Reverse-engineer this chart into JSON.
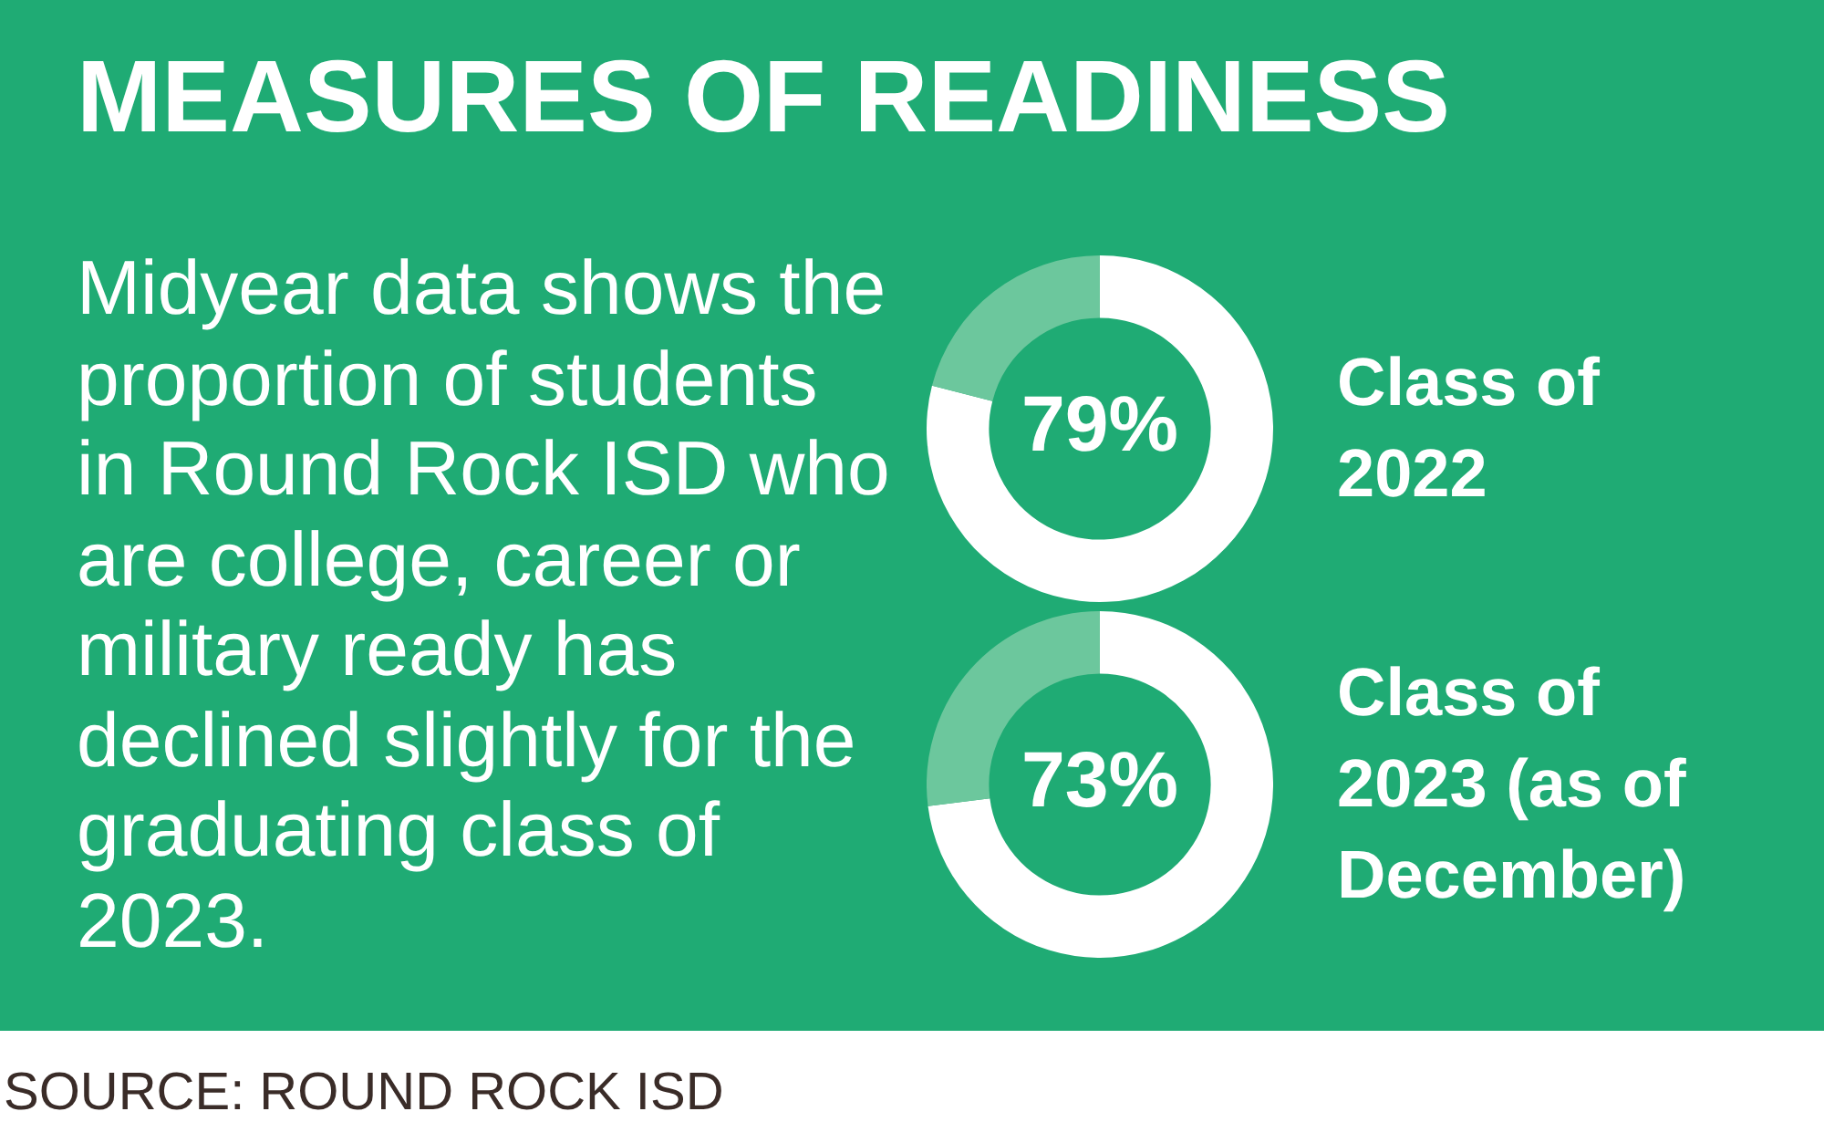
{
  "chart_data": [
    {
      "type": "other",
      "title": "MEASURES OF READINESS",
      "subtitle": "Midyear data shows the proportion of students in Round Rock ISD who are college, career or military ready has declined slightly for the graduating class of 2023.",
      "annotations": [
        "SOURCE: ROUND ROCK ISD"
      ]
    },
    {
      "type": "donut",
      "title": "Class of 2022",
      "categories": [
        null,
        null
      ],
      "values": [
        79,
        21
      ],
      "colors": [
        "#ffffff",
        "#6cc79d"
      ],
      "value_labels": [
        "79%",
        null
      ]
    },
    {
      "type": "donut",
      "title": "Class of 2023 (as of December)",
      "categories": [
        null,
        null
      ],
      "values": [
        73,
        27
      ],
      "colors": [
        "#ffffff",
        "#6cc79d"
      ],
      "value_labels": [
        "73%",
        null
      ]
    }
  ]
}
